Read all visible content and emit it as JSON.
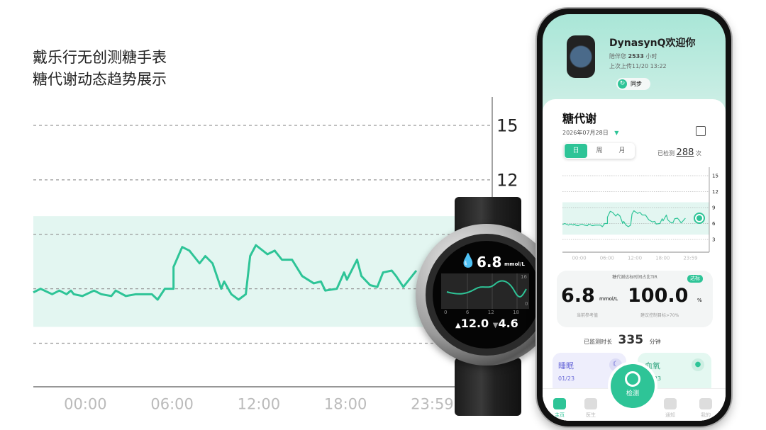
{
  "title": {
    "line1": "戴乐行无创测糖手表",
    "line2": "糖代谢动态趋势展示"
  },
  "colors": {
    "accent": "#2ec497",
    "band": "#e3f6f1",
    "grid": "#999999"
  },
  "chart_data": {
    "type": "line",
    "title": "",
    "xlabel": "",
    "ylabel": "",
    "x_tick_labels": [
      "00:00",
      "06:00",
      "12:00",
      "18:00",
      "23:59"
    ],
    "x_ticks_hours": [
      0,
      6,
      12,
      18,
      24
    ],
    "y_ticks": [
      3,
      6,
      9,
      12,
      15
    ],
    "ylim": [
      0.6,
      15
    ],
    "xlim_hours": [
      -3.6,
      28.2
    ],
    "target_band": [
      3.9,
      10
    ],
    "grid": "horizontal dashed",
    "series": [
      {
        "x_hours": [
          -3.6,
          -3.1,
          -2.3,
          -1.8,
          -1.3,
          -1.0,
          -0.8,
          -0.2,
          0.6,
          1.1,
          1.8,
          2.1,
          2.8,
          3.5,
          4.6,
          5.0,
          5.5,
          6.1,
          6.1,
          6.7,
          7.2,
          7.9,
          8.3,
          8.8,
          9.4,
          9.6,
          10.1,
          10.6,
          11.1,
          11.4,
          11.8,
          12.6,
          13.1,
          13.6,
          14.3,
          15.0,
          15.8,
          16.3,
          16.6,
          17.4,
          17.9,
          18.1,
          18.8,
          19.1,
          19.7,
          20.2,
          20.6,
          21.2,
          21.5,
          22.0,
          22.9
        ],
        "values": [
          5.8,
          6.0,
          5.7,
          5.9,
          5.7,
          5.9,
          5.7,
          5.6,
          5.9,
          5.7,
          5.6,
          5.9,
          5.6,
          5.7,
          5.7,
          5.4,
          6.0,
          6.0,
          7.2,
          8.3,
          8.1,
          7.4,
          7.8,
          7.4,
          6.0,
          6.4,
          5.7,
          5.4,
          5.7,
          7.8,
          8.4,
          7.9,
          8.1,
          7.6,
          7.6,
          6.7,
          6.3,
          6.4,
          5.9,
          6.0,
          6.9,
          6.5,
          7.6,
          6.7,
          6.2,
          6.1,
          6.9,
          7.0,
          6.7,
          6.1,
          7.0
        ]
      }
    ]
  },
  "watch": {
    "glucose": "6.8",
    "unit": "mmol/L",
    "x_ticks": [
      "0",
      "6",
      "12",
      "18"
    ],
    "y_max": "16",
    "y_min": "0",
    "high": "12.0",
    "low": "4.6",
    "high_icon": "triangle-up-icon",
    "low_icon": "triangle-down-icon"
  },
  "phone": {
    "welcome": "DynasynQ欢迎你",
    "accompany_label": "陪伴您",
    "accompany_hours": "2533",
    "accompany_unit": "小时",
    "last_upload": "上次上传11/20 13:22",
    "sync": "同步",
    "section_title": "糖代谢",
    "date": "2026年07月28日",
    "tabs": [
      "日",
      "周",
      "月"
    ],
    "detected_label": "已检测",
    "detected_count": "288",
    "detected_unit": "次",
    "mini_y": [
      "15",
      "12",
      "9",
      "6",
      "3"
    ],
    "mini_x": [
      "00:00",
      "06:00",
      "12:00",
      "18:00",
      "23:59"
    ],
    "tir_title": "糖代谢达标时间占比TIR",
    "badge": "达标",
    "current_value": "6.8",
    "current_unit": "mmol/L",
    "current_label": "当前参考值",
    "tir_value": "100.0",
    "tir_unit": "%",
    "tir_label": "建议控制目标>70%",
    "monitor_label": "已监测时长",
    "monitor_value": "335",
    "monitor_unit": "分钟",
    "sleep_title": "睡眠",
    "sleep_date": "01/23",
    "spo2_title": "血氧",
    "spo2_date": "01/23",
    "detect": "检测",
    "nav": [
      "主页",
      "医生",
      "通知",
      "我的"
    ]
  }
}
